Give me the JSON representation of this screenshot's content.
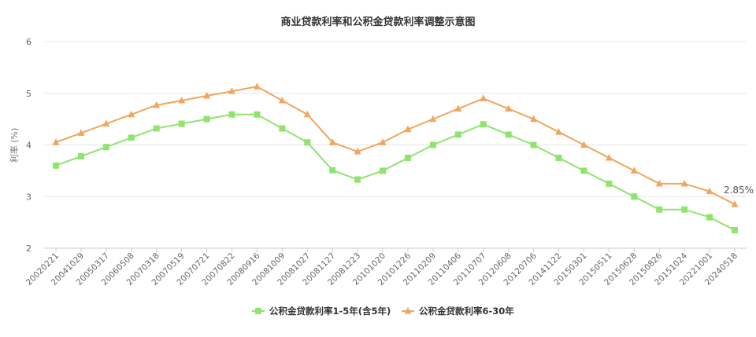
{
  "chart_data": {
    "type": "line",
    "title": "商业贷款利率和公积金贷款利率调整示意图",
    "ylabel": "利率 (%)",
    "xlabel": "",
    "ylim": [
      2,
      6
    ],
    "yticks": [
      "2",
      "3",
      "4",
      "5",
      "6"
    ],
    "grid": true,
    "legend_position": "bottom-center",
    "categories": [
      "20020221",
      "20041029",
      "20050317",
      "20060508",
      "20070318",
      "20070519",
      "20070721",
      "20070822",
      "20080916",
      "20081009",
      "20081027",
      "20081127",
      "20081223",
      "20101020",
      "20101226",
      "20110209",
      "20110406",
      "20110707",
      "20120608",
      "20120706",
      "20141122",
      "20150301",
      "20150511",
      "20150628",
      "20150826",
      "20151024",
      "20221001",
      "20240518"
    ],
    "series": [
      {
        "name": "公积金贷款利率1-5年(含5年)",
        "color": "#90e46e",
        "marker": "square",
        "values": [
          3.6,
          3.78,
          3.96,
          4.14,
          4.32,
          4.41,
          4.5,
          4.59,
          4.59,
          4.32,
          4.05,
          3.51,
          3.33,
          3.5,
          3.75,
          4.0,
          4.2,
          4.4,
          4.2,
          4.0,
          3.75,
          3.5,
          3.25,
          3.0,
          2.75,
          2.75,
          2.6,
          2.35
        ]
      },
      {
        "name": "公积金贷款利率6-30年",
        "color": "#f0a65c",
        "marker": "triangle",
        "values": [
          4.05,
          4.23,
          4.41,
          4.59,
          4.77,
          4.86,
          4.95,
          5.04,
          5.13,
          4.86,
          4.59,
          4.05,
          3.87,
          4.05,
          4.3,
          4.5,
          4.7,
          4.9,
          4.7,
          4.5,
          4.25,
          4.0,
          3.75,
          3.5,
          3.25,
          3.25,
          3.1,
          2.85
        ]
      }
    ],
    "annotations": [
      {
        "text": "2.85%",
        "series": 1,
        "index": 27
      }
    ]
  }
}
